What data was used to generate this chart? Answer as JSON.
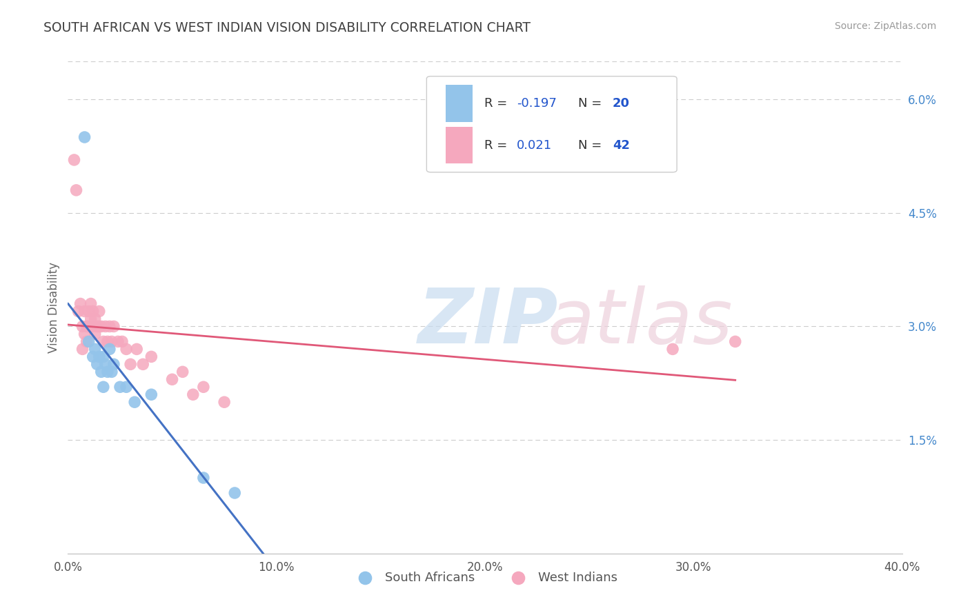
{
  "title": "SOUTH AFRICAN VS WEST INDIAN VISION DISABILITY CORRELATION CHART",
  "source": "Source: ZipAtlas.com",
  "ylabel": "Vision Disability",
  "xlim": [
    0.0,
    0.4
  ],
  "ylim": [
    0.0,
    0.065
  ],
  "xticks": [
    0.0,
    0.1,
    0.2,
    0.3,
    0.4
  ],
  "xtick_labels": [
    "0.0%",
    "10.0%",
    "20.0%",
    "30.0%",
    "40.0%"
  ],
  "yticks_right": [
    0.015,
    0.03,
    0.045,
    0.06
  ],
  "ytick_labels_right": [
    "1.5%",
    "3.0%",
    "4.5%",
    "6.0%"
  ],
  "color_blue": "#93C4EA",
  "color_pink": "#F5A8BE",
  "color_line_blue": "#4472C4",
  "color_line_pink": "#E05878",
  "title_color": "#404040",
  "title_fontsize": 13.5,
  "legend_R_color": "#2255CC",
  "legend_label_color": "#333333",
  "background_color": "#FFFFFF",
  "south_africans_x": [
    0.008,
    0.01,
    0.012,
    0.013,
    0.014,
    0.015,
    0.016,
    0.017,
    0.017,
    0.018,
    0.019,
    0.02,
    0.021,
    0.022,
    0.025,
    0.028,
    0.032,
    0.04,
    0.065,
    0.08
  ],
  "south_africans_y": [
    0.055,
    0.028,
    0.026,
    0.027,
    0.025,
    0.026,
    0.024,
    0.026,
    0.022,
    0.025,
    0.024,
    0.027,
    0.024,
    0.025,
    0.022,
    0.022,
    0.02,
    0.021,
    0.01,
    0.008
  ],
  "west_indians_x": [
    0.003,
    0.004,
    0.005,
    0.006,
    0.007,
    0.007,
    0.008,
    0.008,
    0.009,
    0.009,
    0.01,
    0.01,
    0.011,
    0.011,
    0.012,
    0.012,
    0.013,
    0.013,
    0.014,
    0.015,
    0.015,
    0.016,
    0.017,
    0.018,
    0.019,
    0.02,
    0.021,
    0.022,
    0.024,
    0.026,
    0.028,
    0.03,
    0.033,
    0.036,
    0.04,
    0.05,
    0.055,
    0.06,
    0.065,
    0.075,
    0.29,
    0.32
  ],
  "west_indians_y": [
    0.052,
    0.048,
    0.032,
    0.033,
    0.03,
    0.027,
    0.032,
    0.029,
    0.03,
    0.028,
    0.032,
    0.03,
    0.033,
    0.031,
    0.03,
    0.032,
    0.031,
    0.029,
    0.03,
    0.032,
    0.03,
    0.03,
    0.028,
    0.03,
    0.028,
    0.03,
    0.028,
    0.03,
    0.028,
    0.028,
    0.027,
    0.025,
    0.027,
    0.025,
    0.026,
    0.023,
    0.024,
    0.021,
    0.022,
    0.02,
    0.027,
    0.028
  ],
  "blue_line_x0": 0.003,
  "blue_line_x_solid_end": 0.13,
  "blue_line_x_dash_end": 0.4,
  "blue_line_y0": 0.0285,
  "blue_line_slope": -0.185,
  "pink_line_x0": 0.003,
  "pink_line_x_end": 0.32,
  "pink_line_y0": 0.0278,
  "pink_line_slope": 0.006
}
